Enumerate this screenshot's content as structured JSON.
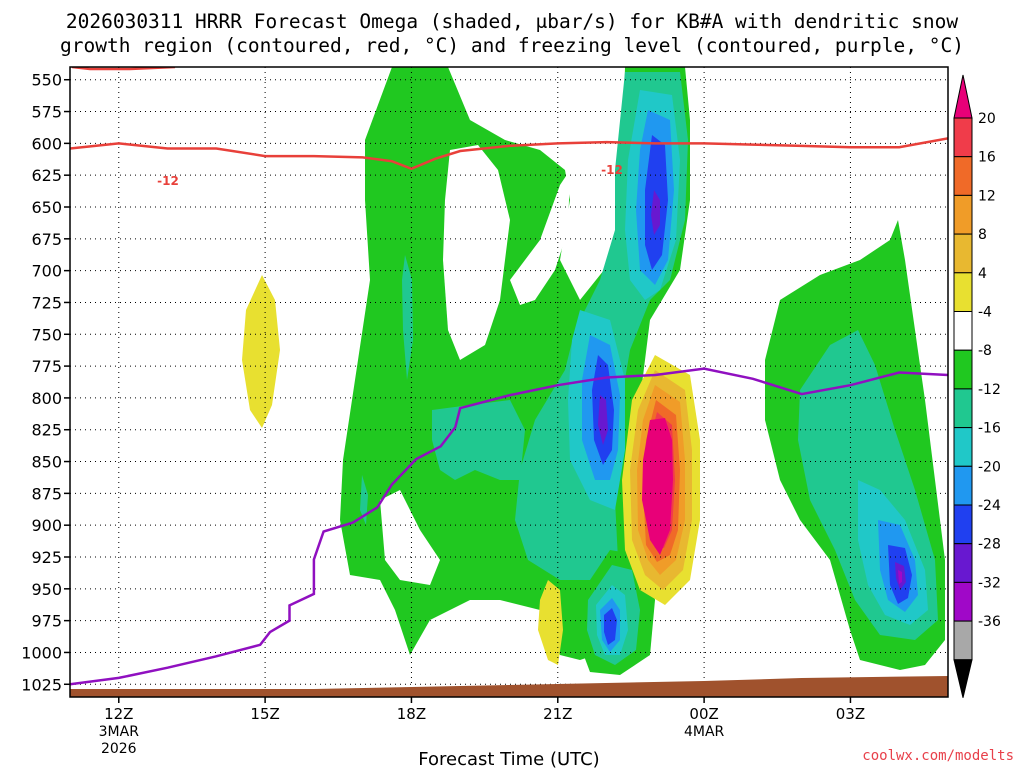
{
  "chart_data": {
    "type": "contour",
    "title_line1": "2026030311 HRRR Forecast Omega (shaded, μbar/s) for KB#A with dendritic snow",
    "title_line2": "growth region (contoured, red, °C) and freezing level (contoured, purple, °C)",
    "xlabel": "Forecast Time (UTC)",
    "credit": "coolwx.com/modelts",
    "y_ticks": [
      "550",
      "575",
      "600",
      "625",
      "650",
      "675",
      "700",
      "725",
      "750",
      "775",
      "800",
      "825",
      "850",
      "875",
      "900",
      "925",
      "950",
      "975",
      "1000",
      "1025"
    ],
    "x_ticks": [
      {
        "label": "12Z",
        "sub1": "3MAR",
        "sub2": "2026"
      },
      {
        "label": "15Z",
        "sub1": "",
        "sub2": ""
      },
      {
        "label": "18Z",
        "sub1": "",
        "sub2": ""
      },
      {
        "label": "21Z",
        "sub1": "",
        "sub2": ""
      },
      {
        "label": "00Z",
        "sub1": "4MAR",
        "sub2": ""
      },
      {
        "label": "03Z",
        "sub1": "",
        "sub2": ""
      }
    ],
    "x_range_hours": [
      11,
      29
    ],
    "y_range_mb": [
      540,
      1035
    ],
    "colorbar": {
      "labels": [
        "20",
        "16",
        "12",
        "8",
        "4",
        "-4",
        "-8",
        "-12",
        "-16",
        "-20",
        "-24",
        "-28",
        "-32",
        "-36"
      ],
      "colors": [
        "#f03c4a",
        "#f06a28",
        "#f09c28",
        "#e8b830",
        "#e8e030",
        "#ffffff",
        "#20c820",
        "#20c890",
        "#20c8c8",
        "#2098f0",
        "#2040f0",
        "#6818d0",
        "#a008c8",
        "#a8a8a8"
      ],
      "top_arrow_color": "#e80078",
      "bottom_arrow_color": "#000000"
    },
    "dgz_contour": {
      "label": "-12",
      "color": "#e8403a",
      "points": [
        [
          11,
          604
        ],
        [
          12,
          600
        ],
        [
          13,
          604
        ],
        [
          14,
          604
        ],
        [
          15,
          610
        ],
        [
          16,
          610
        ],
        [
          17,
          611
        ],
        [
          17.6,
          614
        ],
        [
          18,
          620
        ],
        [
          18.5,
          612
        ],
        [
          19,
          606
        ],
        [
          20,
          602
        ],
        [
          21,
          600
        ],
        [
          22,
          599
        ],
        [
          23,
          600
        ],
        [
          24,
          600
        ],
        [
          25,
          601
        ],
        [
          26,
          602
        ],
        [
          27,
          603
        ],
        [
          28,
          603
        ],
        [
          29,
          596
        ]
      ]
    },
    "freezing_level_contour": {
      "color": "#9010c0",
      "points": [
        [
          11,
          1025
        ],
        [
          12,
          1020
        ],
        [
          13,
          1012
        ],
        [
          14,
          1003
        ],
        [
          14.9,
          994
        ],
        [
          15.1,
          984
        ],
        [
          15.5,
          975
        ],
        [
          15.5,
          963
        ],
        [
          16,
          954
        ],
        [
          16,
          927
        ],
        [
          16.2,
          905
        ],
        [
          16.8,
          898
        ],
        [
          17.3,
          886
        ],
        [
          17.6,
          868
        ],
        [
          18.1,
          848
        ],
        [
          18.6,
          838
        ],
        [
          18.9,
          823
        ],
        [
          19,
          808
        ],
        [
          20,
          798
        ],
        [
          21,
          790
        ],
        [
          22,
          784
        ],
        [
          23,
          782
        ],
        [
          24,
          777
        ],
        [
          25,
          785
        ],
        [
          26,
          797
        ],
        [
          27,
          790
        ],
        [
          28,
          780
        ],
        [
          29,
          782
        ]
      ]
    },
    "terrain_color": "#a0522d"
  }
}
